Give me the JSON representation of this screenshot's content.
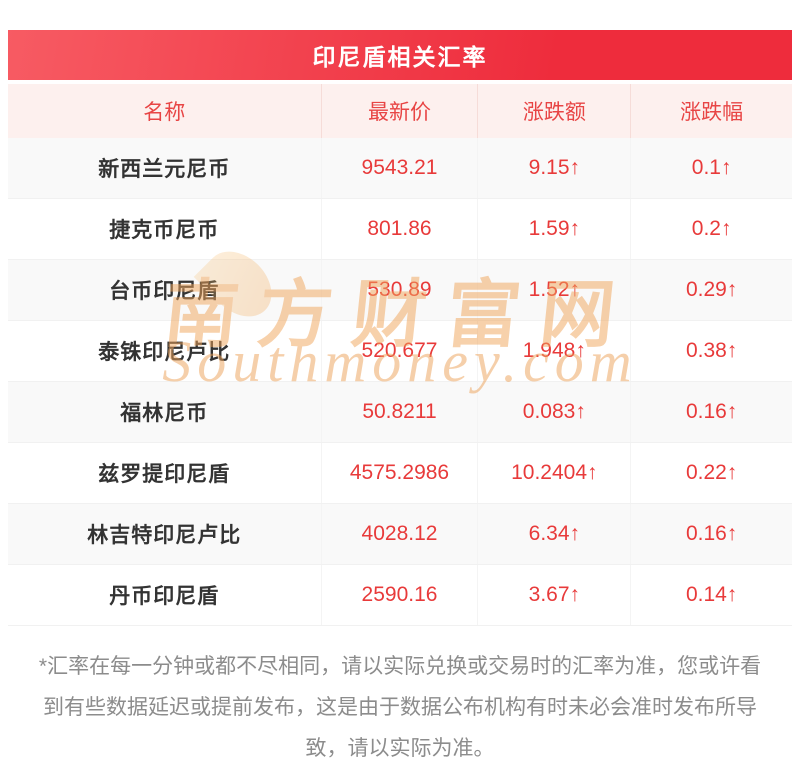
{
  "chart_data": {
    "type": "table",
    "title": "印尼盾相关汇率",
    "columns": [
      "名称",
      "最新价",
      "涨跌额",
      "涨跌幅"
    ],
    "rows": [
      [
        "新西兰元尼币",
        "9543.21",
        "9.15↑",
        "0.1↑"
      ],
      [
        "捷克币尼币",
        "801.86",
        "1.59↑",
        "0.2↑"
      ],
      [
        "台币印尼盾",
        "530.89",
        "1.52↑",
        "0.29↑"
      ],
      [
        "泰铢印尼卢比",
        "520.677",
        "1.948↑",
        "0.38↑"
      ],
      [
        "福林尼币",
        "50.8211",
        "0.083↑",
        "0.16↑"
      ],
      [
        "兹罗提印尼盾",
        "4575.2986",
        "10.2404↑",
        "0.22↑"
      ],
      [
        "林吉特印尼卢比",
        "4028.12",
        "6.34↑",
        "0.16↑"
      ],
      [
        "丹币印尼盾",
        "2590.16",
        "3.67↑",
        "0.14↑"
      ]
    ]
  },
  "watermark": {
    "cn": "南方财富网",
    "en": "Southmoney.com"
  },
  "footer": {
    "note": "*汇率在每一分钟或都不尽相同，请以实际兑换或交易时的汇率为准，您或许看到有些数据延迟或提前发布，这是由于数据公布机构有时未必会准时发布所导致，请以实际为准。"
  },
  "colors": {
    "accent_red": "#ee2c3c",
    "value_red": "#e83a3a",
    "header_row_bg": "#fdf0ee",
    "watermark_orange": "#f0a45a"
  }
}
